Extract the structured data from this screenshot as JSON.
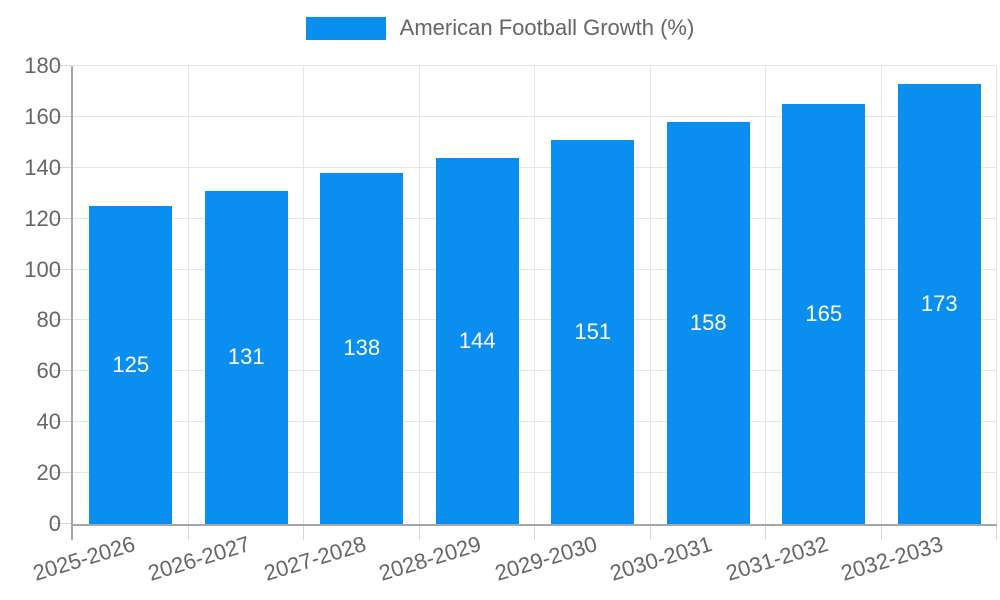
{
  "chart_data": {
    "type": "bar",
    "title": "",
    "categories": [
      "2025-2026",
      "2026-2027",
      "2027-2028",
      "2028-2029",
      "2029-2030",
      "2030-2031",
      "2031-2032",
      "2032-2033"
    ],
    "series": [
      {
        "name": "American Football Growth (%)",
        "values": [
          125,
          131,
          138,
          144,
          151,
          158,
          165,
          173
        ]
      }
    ],
    "value_labels": [
      "125",
      "131",
      "138",
      "144",
      "151",
      "158",
      "165",
      "173"
    ],
    "xlabel": "",
    "ylabel": "",
    "ylim": [
      0,
      180
    ],
    "yticks": [
      0,
      20,
      40,
      60,
      80,
      100,
      120,
      140,
      160,
      180
    ],
    "grid": true,
    "legend_position": "top",
    "x_label_rotation_deg": -17,
    "colors": {
      "bar": "#0a8ff0",
      "value_label": "#ffffff",
      "axis_text": "#666666",
      "grid_line": "#e6e6e6",
      "tick_line": "#d6d6d6",
      "axis_line": "#a6a6a6",
      "background": "#ffffff"
    }
  }
}
